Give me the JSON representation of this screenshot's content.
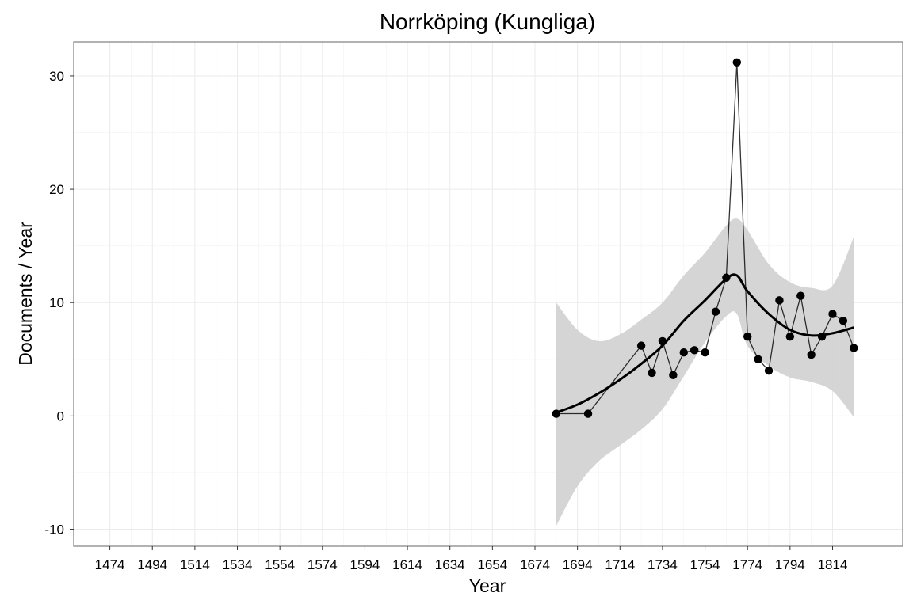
{
  "chart_data": {
    "type": "line",
    "title": "Norrköping (Kungliga)",
    "xlabel": "Year",
    "ylabel": "Documents / Year",
    "xlim": [
      1457,
      1847
    ],
    "ylim": [
      -11.5,
      33
    ],
    "x_ticks": [
      1474,
      1494,
      1514,
      1534,
      1554,
      1574,
      1594,
      1614,
      1634,
      1654,
      1674,
      1694,
      1714,
      1734,
      1754,
      1774,
      1794,
      1814
    ],
    "x_tick_labels": [
      "1474",
      "1494",
      "1514",
      "1534",
      "1554",
      "1574",
      "1594",
      "1614",
      "1634",
      "1654",
      "1674",
      "1694",
      "1714",
      "1734",
      "1754",
      "1774",
      "1794",
      "1814"
    ],
    "y_ticks": [
      -10,
      0,
      10,
      20,
      30
    ],
    "y_tick_labels": [
      "-10",
      "0",
      "10",
      "20",
      "30"
    ],
    "grid": true,
    "legend": "none",
    "colors": {
      "points": "#000000",
      "observed_line": "#000000",
      "smooth_line": "#000000",
      "ribbon": "#d3d3d3",
      "grid": "#ebebeb",
      "panel_border": "#7f7f7f"
    },
    "series": [
      {
        "x": [
          1684,
          1699,
          1724,
          1729,
          1734,
          1739,
          1744,
          1749,
          1754,
          1759,
          1764,
          1769,
          1774,
          1779,
          1784,
          1789,
          1794,
          1799,
          1804,
          1809,
          1814,
          1819,
          1824
        ],
        "y": [
          0.2,
          0.2,
          6.2,
          3.8,
          6.6,
          3.6,
          5.6,
          5.8,
          5.6,
          9.2,
          12.2,
          31.2,
          7.0,
          5.0,
          4.0,
          10.2,
          7.0,
          10.6,
          5.4,
          7.0,
          9.0,
          8.4,
          6.0
        ]
      },
      {
        "x": [
          1684,
          1694,
          1704,
          1714,
          1724,
          1734,
          1744,
          1754,
          1764,
          1769,
          1774,
          1784,
          1794,
          1804,
          1814,
          1824
        ],
        "y": [
          0.3,
          1.0,
          2.0,
          3.2,
          4.6,
          6.2,
          8.4,
          10.2,
          12.1,
          12.4,
          11.0,
          9.0,
          7.6,
          7.1,
          7.3,
          7.8
        ],
        "lower": [
          -9.7,
          -6.2,
          -4.0,
          -2.6,
          -1.2,
          0.6,
          3.5,
          6.5,
          8.8,
          9.0,
          6.2,
          4.4,
          3.4,
          3.0,
          2.2,
          -0.1
        ],
        "upper": [
          10.0,
          7.6,
          6.6,
          7.2,
          8.5,
          10.0,
          12.4,
          14.4,
          16.8,
          17.4,
          16.4,
          13.4,
          11.8,
          11.3,
          11.5,
          15.8
        ]
      }
    ]
  }
}
